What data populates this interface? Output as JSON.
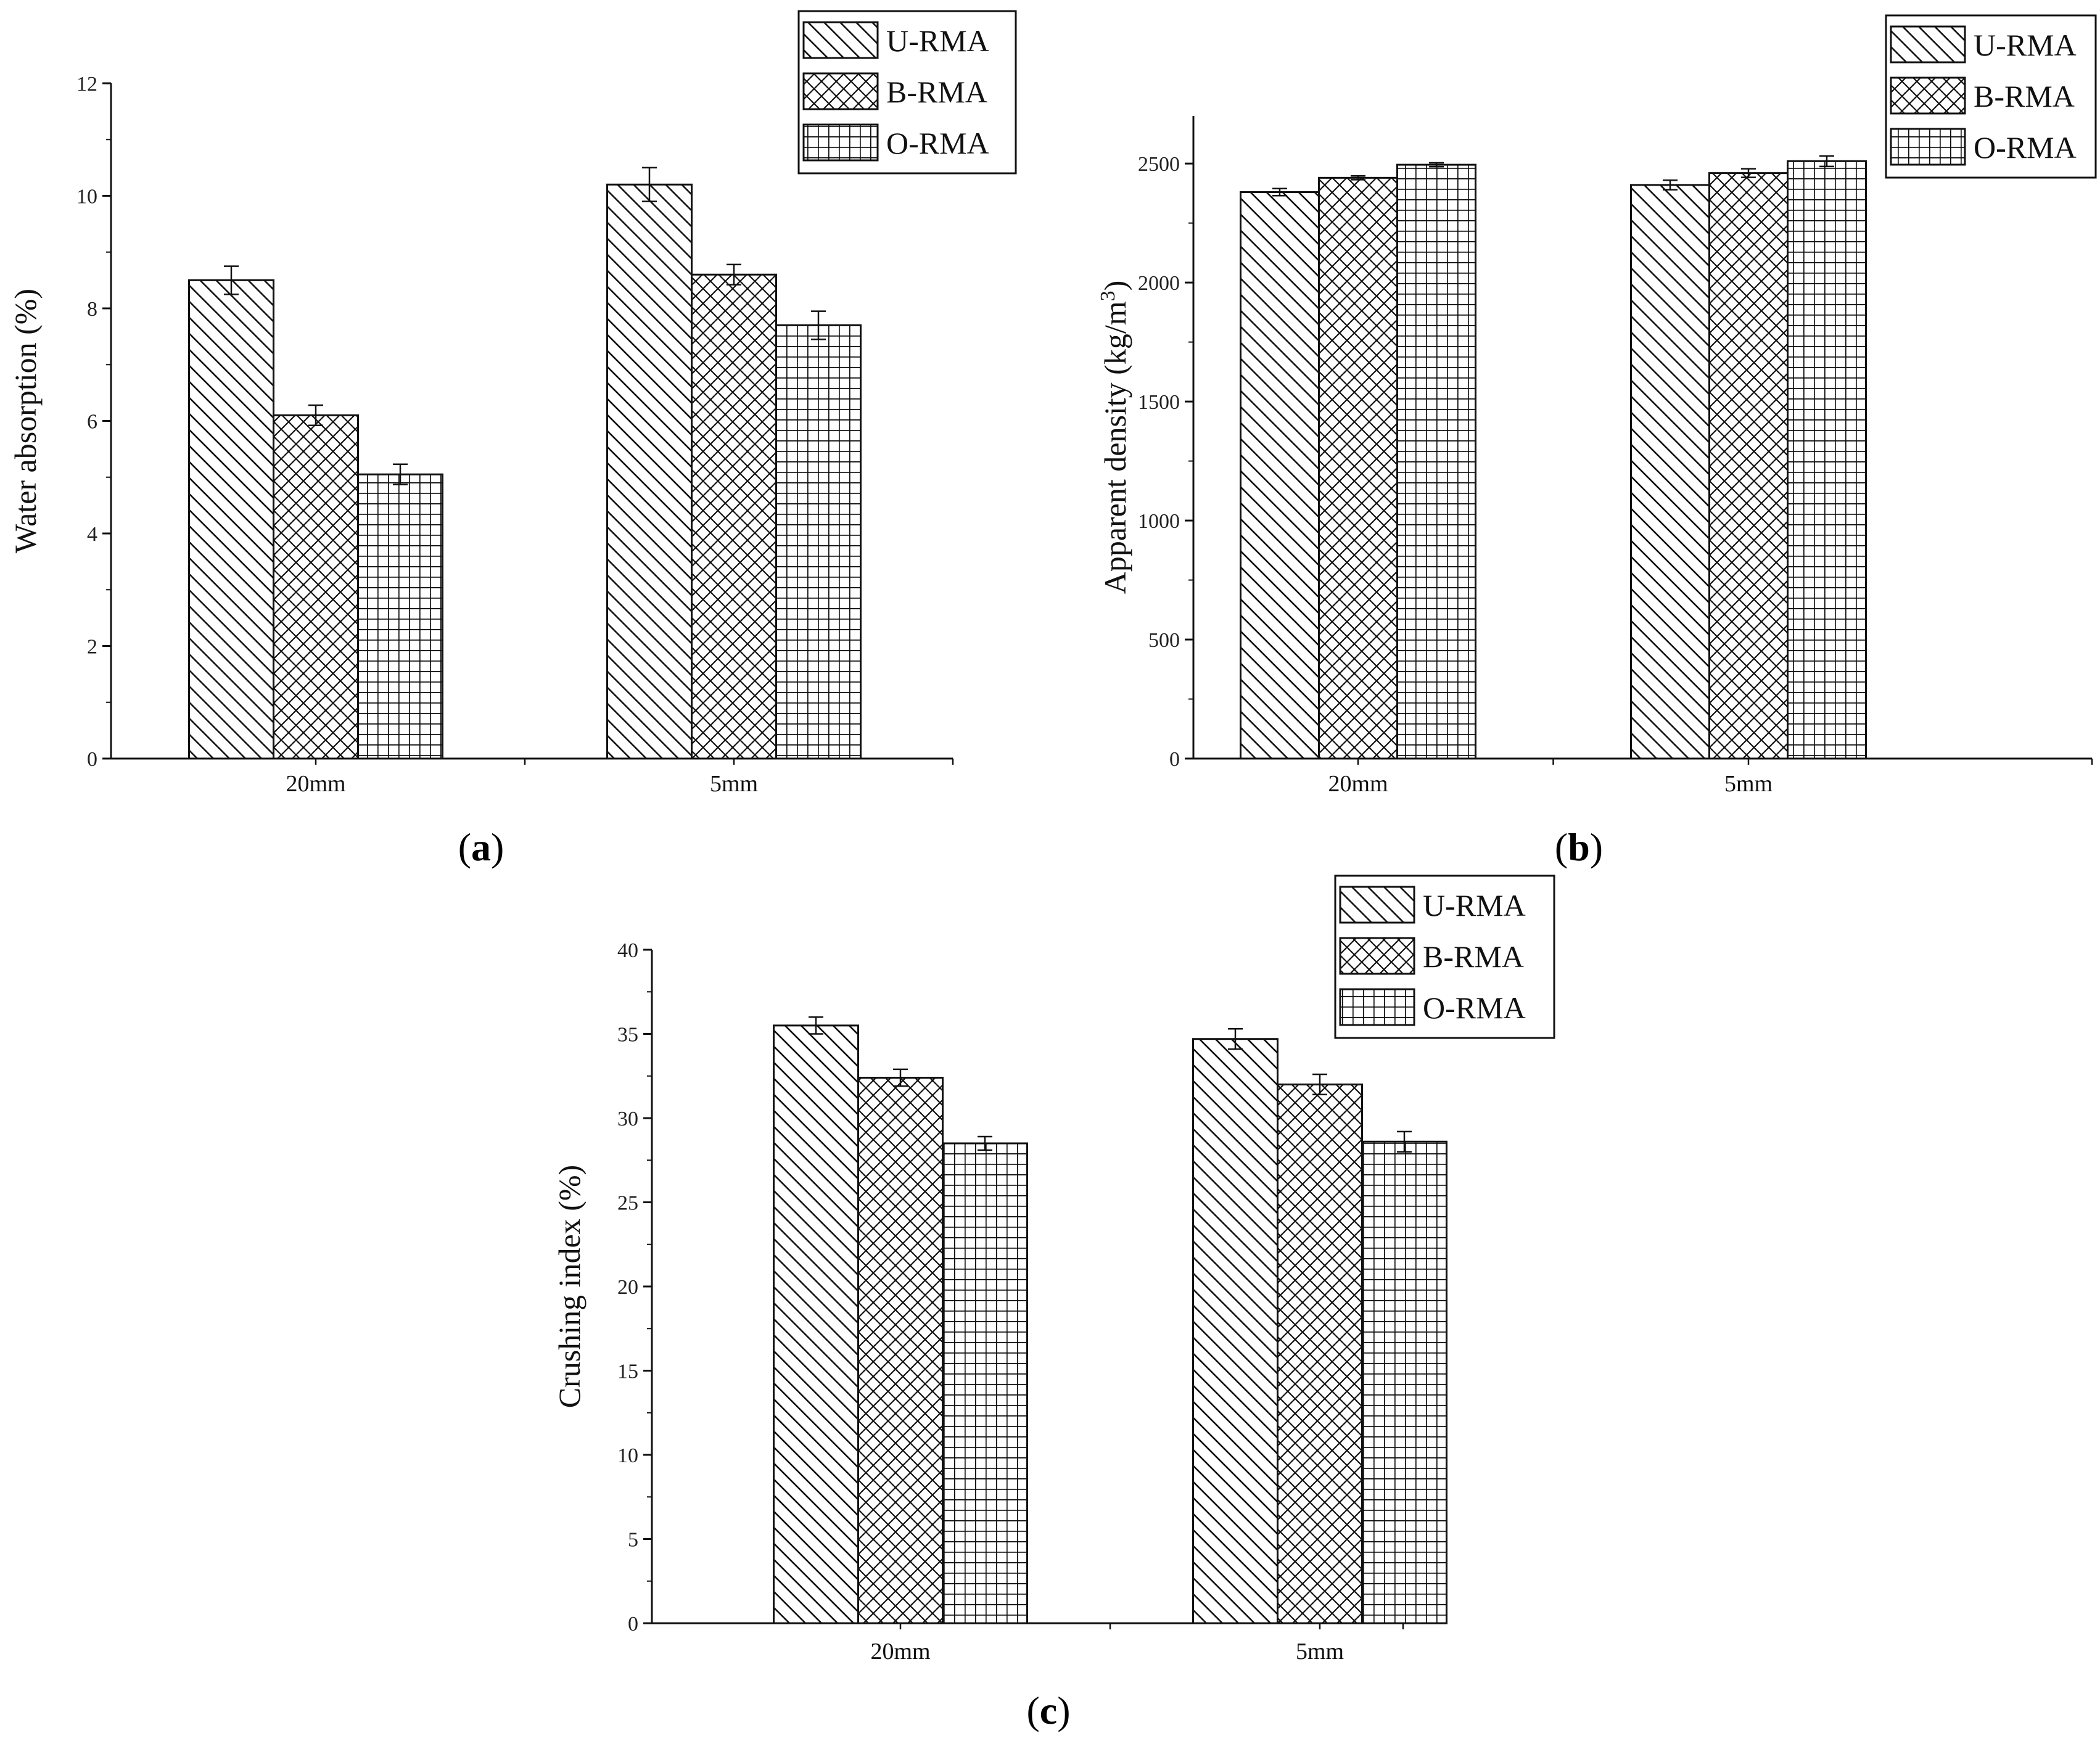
{
  "colors": {
    "ink": "#111111",
    "background": "#ffffff"
  },
  "chart_data": [
    {
      "type": "bar",
      "panel_label": "a",
      "categories": [
        "20mm",
        "5mm"
      ],
      "series": [
        {
          "name": "U-RMA",
          "pattern": "diag-back",
          "values": [
            8.5,
            10.2
          ],
          "errors": [
            0.25,
            0.3
          ]
        },
        {
          "name": "B-RMA",
          "pattern": "cross-diag",
          "values": [
            6.1,
            8.6
          ],
          "errors": [
            0.18,
            0.18
          ]
        },
        {
          "name": "O-RMA",
          "pattern": "grid",
          "values": [
            5.05,
            7.7
          ],
          "errors": [
            0.18,
            0.25
          ]
        }
      ],
      "ylabel": "Water absorption (%)",
      "ylim": [
        0,
        12
      ],
      "yticks": [
        0,
        2,
        4,
        6,
        8,
        10,
        12
      ],
      "ytick_labels": [
        "0",
        "2",
        "4",
        "6",
        "8",
        "10",
        "12"
      ],
      "legend": [
        "U-RMA",
        "B-RMA",
        "O-RMA"
      ],
      "legend_position": "top-right"
    },
    {
      "type": "bar",
      "panel_label": "b",
      "categories": [
        "20mm",
        "5mm"
      ],
      "series": [
        {
          "name": "U-RMA",
          "pattern": "diag-back",
          "values": [
            2380,
            2410
          ],
          "errors": [
            15,
            20
          ]
        },
        {
          "name": "B-RMA",
          "pattern": "cross-diag",
          "values": [
            2440,
            2460
          ],
          "errors": [
            8,
            18
          ]
        },
        {
          "name": "O-RMA",
          "pattern": "grid",
          "values": [
            2495,
            2510
          ],
          "errors": [
            8,
            22
          ]
        }
      ],
      "ylabel": "Apparent density (kg/m",
      "ylabel_sup": "3",
      "ylabel_end": ")",
      "ylim": [
        0,
        2700
      ],
      "yticks": [
        0,
        500,
        1000,
        1500,
        2000,
        2500
      ],
      "ytick_labels": [
        "0",
        "500",
        "1000",
        "1500",
        "2000",
        "2500"
      ],
      "legend": [
        "U-RMA",
        "B-RMA",
        "O-RMA"
      ],
      "legend_position": "top-right"
    },
    {
      "type": "bar",
      "panel_label": "c",
      "categories": [
        "20mm",
        "5mm"
      ],
      "series": [
        {
          "name": "U-RMA",
          "pattern": "diag-back",
          "values": [
            35.5,
            34.7
          ],
          "errors": [
            0.5,
            0.6
          ]
        },
        {
          "name": "B-RMA",
          "pattern": "cross-diag",
          "values": [
            32.4,
            32.0
          ],
          "errors": [
            0.5,
            0.6
          ]
        },
        {
          "name": "O-RMA",
          "pattern": "grid",
          "values": [
            28.5,
            28.6
          ],
          "errors": [
            0.4,
            0.6
          ]
        }
      ],
      "ylabel": "Crushing index (%)",
      "ylim": [
        0,
        40
      ],
      "yticks": [
        0,
        5,
        10,
        15,
        20,
        25,
        30,
        35,
        40
      ],
      "ytick_labels": [
        "0",
        "5",
        "10",
        "15",
        "20",
        "25",
        "30",
        "35",
        "40"
      ],
      "legend": [
        "U-RMA",
        "B-RMA",
        "O-RMA"
      ],
      "legend_position": "top-right"
    }
  ]
}
